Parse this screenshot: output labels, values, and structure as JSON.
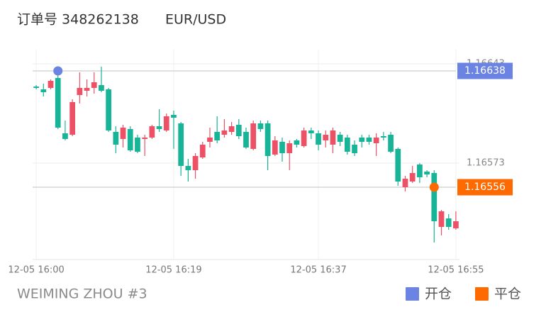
{
  "chart_data": {
    "type": "candlestick",
    "title": "订单号 348262138",
    "symbol": "EUR/USD",
    "footer": "WEIMING ZHOU #3",
    "up_color": "#ec5166",
    "down_color": "#17b497",
    "categories": [
      "12-05 16:00",
      null,
      null,
      null,
      null,
      null,
      null,
      null,
      null,
      null,
      null,
      null,
      null,
      null,
      null,
      null,
      null,
      null,
      null,
      "12-05 16:19",
      null,
      null,
      null,
      null,
      null,
      null,
      null,
      null,
      null,
      null,
      null,
      null,
      null,
      null,
      null,
      null,
      null,
      null,
      null,
      "12-05 16:37",
      null,
      null,
      null,
      null,
      null,
      null,
      null,
      null,
      null,
      null,
      null,
      null,
      null,
      null,
      null,
      null,
      null,
      null,
      "12-05 16:55"
    ],
    "open": [
      1.16627,
      1.16625,
      1.16626,
      1.16633,
      1.16594,
      1.16593,
      1.16621,
      1.16624,
      1.16626,
      1.16628,
      1.16625,
      1.16595,
      1.1659,
      1.16597,
      1.16591,
      1.1659,
      1.16591,
      1.16599,
      1.16596,
      1.16607,
      1.16601,
      1.16571,
      1.16568,
      1.16577,
      1.16588,
      1.16595,
      1.16593,
      1.16595,
      1.166,
      1.16595,
      1.16583,
      1.16601,
      1.16601,
      1.16579,
      1.16588,
      1.1658,
      1.16589,
      1.16585,
      1.16596,
      1.16594,
      1.16589,
      1.16586,
      1.16593,
      1.16591,
      1.16586,
      1.16591,
      1.16591,
      1.16587,
      1.16592,
      1.16593,
      1.16583,
      1.16556,
      1.1656,
      1.16572,
      1.16567,
      1.16566,
      1.16528,
      1.16534,
      1.16527
    ],
    "high": [
      1.16628,
      1.16629,
      1.16632,
      1.1664,
      1.16603,
      1.16618,
      1.16637,
      1.16632,
      1.16637,
      1.16641,
      1.16626,
      1.16599,
      1.166,
      1.16599,
      1.16593,
      1.16593,
      1.166,
      1.16611,
      1.16608,
      1.1661,
      1.16602,
      1.16576,
      1.1658,
      1.16588,
      1.16598,
      1.16606,
      1.16604,
      1.16602,
      1.16604,
      1.16598,
      1.16603,
      1.16603,
      1.16603,
      1.16592,
      1.16591,
      1.16589,
      1.1659,
      1.16598,
      1.16598,
      1.16596,
      1.16596,
      1.16598,
      1.16595,
      1.16593,
      1.16589,
      1.16593,
      1.16593,
      1.16594,
      1.16595,
      1.16595,
      1.16584,
      1.16564,
      1.16571,
      1.16573,
      1.16568,
      1.16568,
      1.1654,
      1.16537,
      1.16539
    ],
    "low": [
      1.16625,
      1.1662,
      1.16625,
      1.16597,
      1.16589,
      1.16592,
      1.16615,
      1.1662,
      1.16622,
      1.16623,
      1.16595,
      1.1658,
      1.16584,
      1.16581,
      1.1658,
      1.16578,
      1.1659,
      1.16595,
      1.16595,
      1.16583,
      1.16564,
      1.1656,
      1.16562,
      1.16576,
      1.16584,
      1.16587,
      1.16591,
      1.16593,
      1.1659,
      1.16583,
      1.16582,
      1.16595,
      1.16568,
      1.16578,
      1.16574,
      1.16568,
      1.16584,
      1.16584,
      1.1659,
      1.16582,
      1.16584,
      1.1658,
      1.16585,
      1.16579,
      1.16578,
      1.16584,
      1.16586,
      1.16578,
      1.16589,
      1.1658,
      1.16557,
      1.16553,
      1.16559,
      1.16559,
      1.16563,
      1.16517,
      1.16522,
      1.16526,
      1.16526
    ],
    "close": [
      1.16626,
      1.16623,
      1.16631,
      1.16598,
      1.1659,
      1.16616,
      1.16626,
      1.16626,
      1.1663,
      1.16624,
      1.16596,
      1.16586,
      1.16598,
      1.16582,
      1.16581,
      1.16591,
      1.16599,
      1.16597,
      1.16606,
      1.16605,
      1.16571,
      1.16568,
      1.16578,
      1.16586,
      1.16591,
      1.16589,
      1.16596,
      1.16599,
      1.16592,
      1.16584,
      1.16601,
      1.16597,
      1.16578,
      1.16589,
      1.1658,
      1.16587,
      1.16586,
      1.16596,
      1.16594,
      1.16586,
      1.16593,
      1.16596,
      1.16588,
      1.16581,
      1.1658,
      1.16588,
      1.16588,
      1.16591,
      1.16591,
      1.16581,
      1.1656,
      1.16562,
      1.16566,
      1.16563,
      1.16565,
      1.16532,
      1.16539,
      1.16528,
      1.16532
    ],
    "ylim": [
      1.16505,
      1.16653
    ],
    "yticks": [
      1.16573,
      1.16643
    ],
    "markers": [
      {
        "name": "开仓",
        "color": "#6b84e3",
        "category_index": 3,
        "value": 1.16638
      },
      {
        "name": "平仓",
        "color": "#ff6a00",
        "category_index": 55,
        "value": 1.16556
      }
    ]
  }
}
